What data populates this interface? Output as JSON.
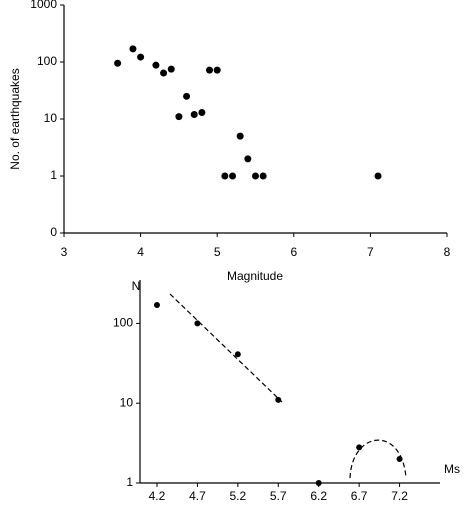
{
  "chart_data": [
    {
      "type": "scatter",
      "x_label": "Magnitude",
      "y_label": "No. of earthquakes",
      "x": [
        3.7,
        3.9,
        4.0,
        4.2,
        4.3,
        4.4,
        4.5,
        4.6,
        4.7,
        4.8,
        4.9,
        5.0,
        5.1,
        5.2,
        5.3,
        5.4,
        5.5,
        5.6,
        7.1
      ],
      "values": [
        95,
        170,
        122,
        88,
        64,
        75,
        11,
        25,
        12,
        13,
        72,
        72,
        1,
        1,
        5,
        2,
        1,
        1,
        1
      ],
      "color": "#000000",
      "y_scale": "log",
      "xlim": [
        3,
        8
      ],
      "xticks": [
        3,
        4,
        5,
        6,
        7,
        8
      ],
      "ylim": [
        0.1,
        1000
      ],
      "yticks": [
        {
          "value": 0.1,
          "label": "0"
        },
        1,
        10,
        100,
        1000
      ]
    },
    {
      "type": "scatter",
      "x_label": "Ms",
      "y_label": "N",
      "x": [
        4.2,
        4.7,
        5.2,
        5.7,
        6.2,
        6.7,
        7.2
      ],
      "values": [
        170,
        100,
        41,
        11,
        1,
        2.8,
        2
      ],
      "color": "#000000",
      "y_scale": "log",
      "xlim": [
        3.99,
        7.7
      ],
      "xticks": [
        4.2,
        4.7,
        5.2,
        5.7,
        6.2,
        6.7,
        7.2
      ],
      "ylim": [
        1,
        350
      ],
      "yticks": [
        1,
        10,
        100
      ]
    }
  ]
}
